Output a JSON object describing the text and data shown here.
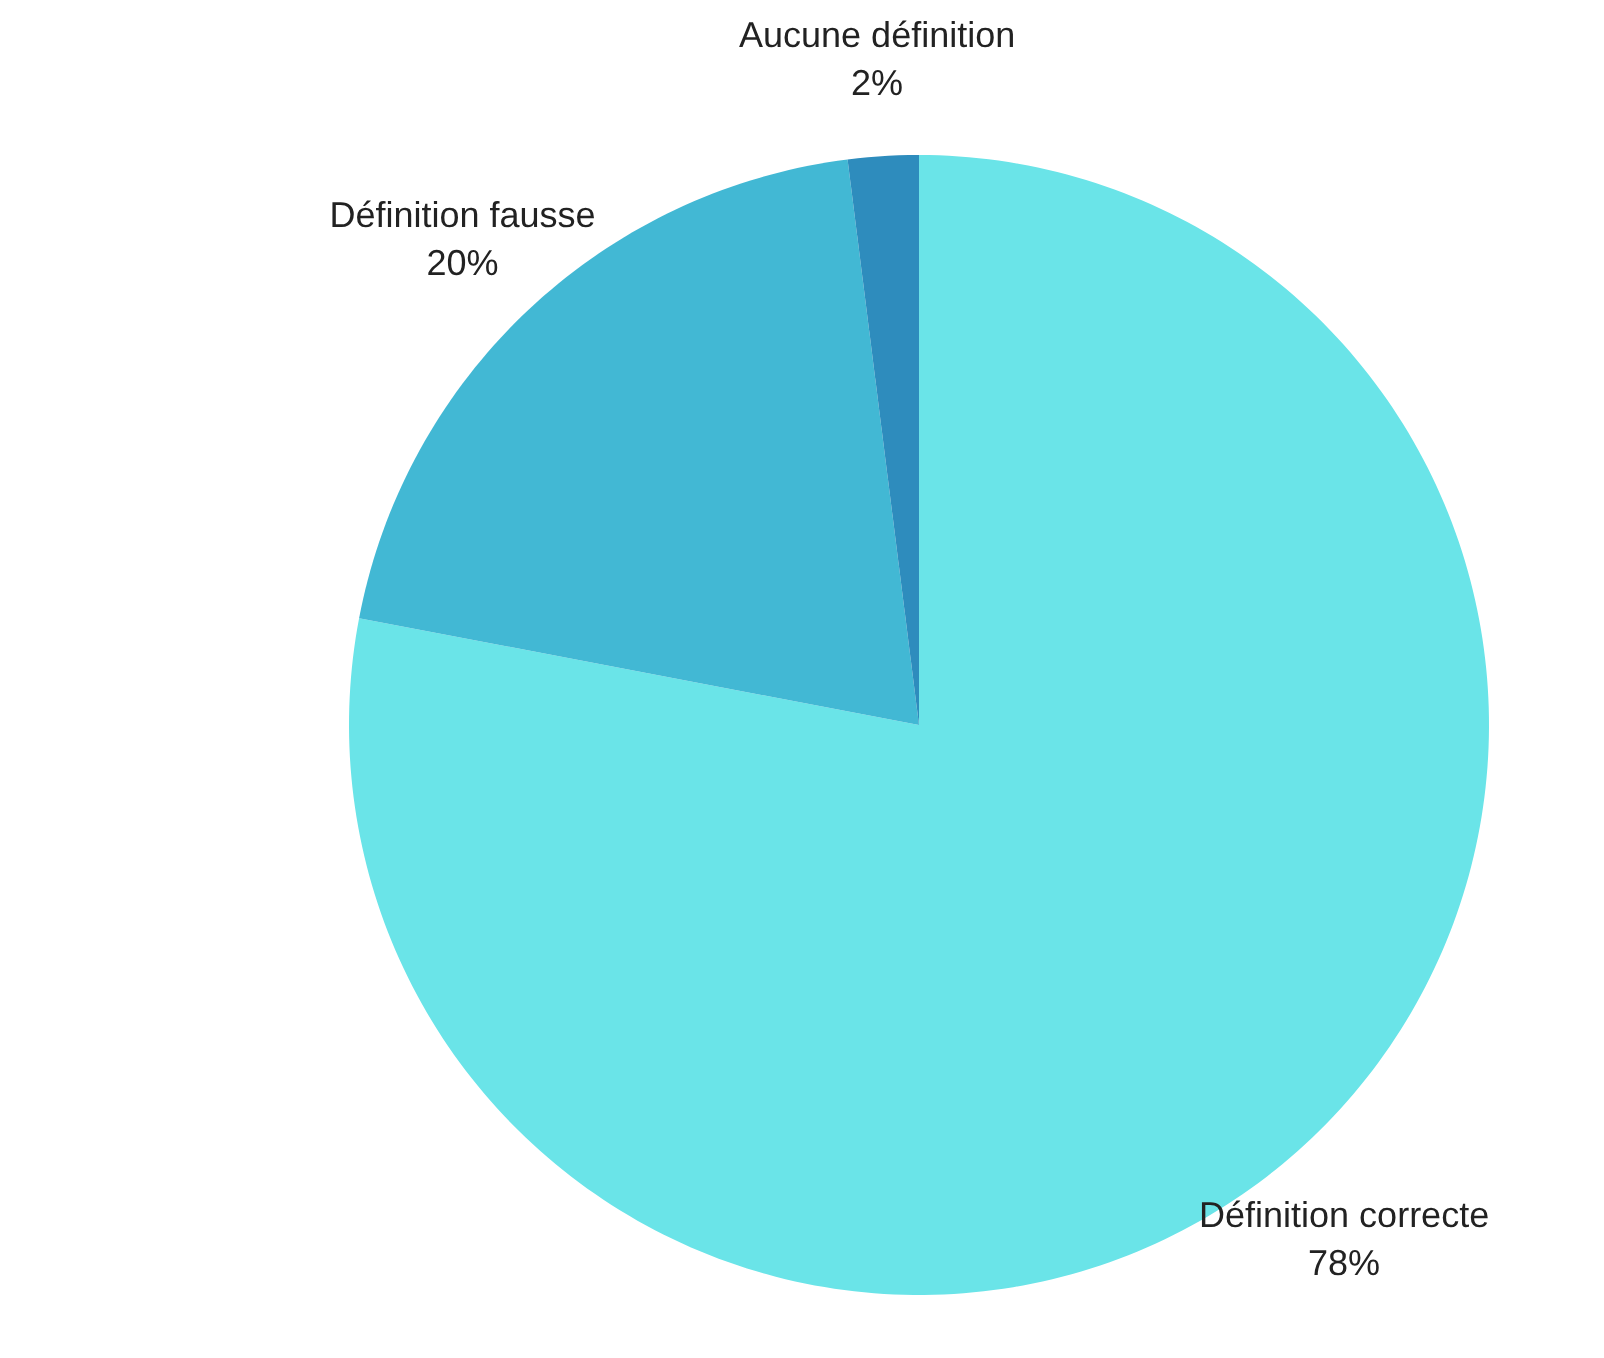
{
  "chart_data": {
    "type": "pie",
    "categories": [
      "Définition correcte",
      "Définition fausse",
      "Aucune définition"
    ],
    "values": [
      78,
      20,
      2
    ],
    "value_labels": [
      "78%",
      "20%",
      "2%"
    ],
    "colors": [
      "#6ae4e8",
      "#42b8d4",
      "#2e8cbd"
    ],
    "legend": false
  }
}
